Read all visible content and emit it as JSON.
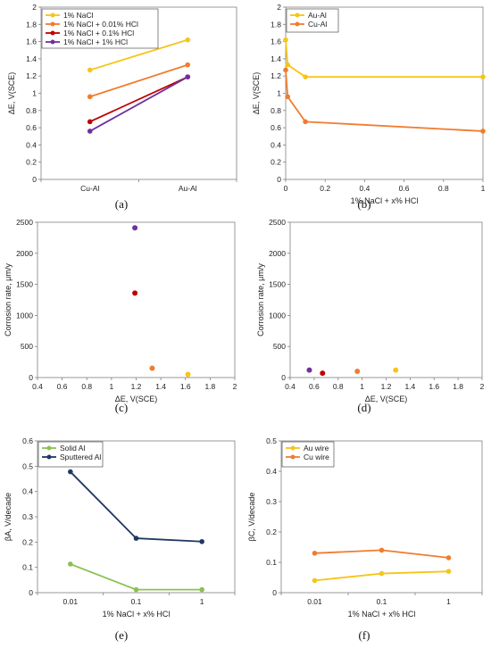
{
  "chart_data": [
    {
      "caption": "(a)",
      "type": "line",
      "categories": [
        "Cu-Al",
        "Au-Al"
      ],
      "series": [
        {
          "name": "1% NaCl",
          "values": [
            1.27,
            1.62
          ],
          "color": "#f5c518"
        },
        {
          "name": "1% NaCl + 0.01% HCl",
          "values": [
            0.96,
            1.33
          ],
          "color": "#f07c2e"
        },
        {
          "name": "1% NaCl + 0.1% HCl",
          "values": [
            0.67,
            1.19
          ],
          "color": "#c00000"
        },
        {
          "name": "1% NaCl + 1% HCl",
          "values": [
            0.56,
            1.19
          ],
          "color": "#7030a0"
        }
      ],
      "ylabel": "ΔE, V(SCE)",
      "xlabel": "",
      "ylim": [
        0,
        2
      ],
      "yticks": [
        "0",
        "0.2",
        "0.4",
        "0.6",
        "0.8",
        "1",
        "1.2",
        "1.4",
        "1.6",
        "1.8",
        "2"
      ],
      "grid": false,
      "legend": "top-left"
    },
    {
      "caption": "(b)",
      "type": "line",
      "x": [
        0,
        0.01,
        0.1,
        1
      ],
      "series": [
        {
          "name": "Au-Al",
          "values": [
            1.62,
            1.33,
            1.19,
            1.19
          ],
          "color": "#f5c518"
        },
        {
          "name": "Cu-Al",
          "values": [
            1.27,
            0.96,
            0.67,
            0.56
          ],
          "color": "#f07c2e"
        }
      ],
      "xlabel": "1% NaCl  + x% HCl",
      "ylabel": "ΔE, V(SCE)",
      "xlim": [
        0,
        1
      ],
      "xticks": [
        "0",
        "0.2",
        "0.4",
        "0.6",
        "0.8",
        "1"
      ],
      "ylim": [
        0,
        2
      ],
      "yticks": [
        "0",
        "0.2",
        "0.4",
        "0.6",
        "0.8",
        "1",
        "1.2",
        "1.4",
        "1.6",
        "1.8",
        "2"
      ],
      "grid": false,
      "legend": "top-left"
    },
    {
      "caption": "(c)",
      "type": "scatter",
      "points": [
        {
          "x": 1.62,
          "y": 50,
          "color": "#f5c518"
        },
        {
          "x": 1.33,
          "y": 150,
          "color": "#f07c2e"
        },
        {
          "x": 1.19,
          "y": 1360,
          "color": "#c00000"
        },
        {
          "x": 1.19,
          "y": 2410,
          "color": "#7030a0"
        }
      ],
      "xlabel": "ΔE, V(SCE)",
      "ylabel": "Corrosion rate, μm/y",
      "xlim": [
        0.4,
        2
      ],
      "xticks": [
        "0.4",
        "0.6",
        "0.8",
        "1",
        "1.2",
        "1.4",
        "1.6",
        "1.8",
        "2"
      ],
      "ylim": [
        0,
        2500
      ],
      "yticks": [
        "0",
        "500",
        "1000",
        "1500",
        "2000",
        "2500"
      ],
      "grid": false
    },
    {
      "caption": "(d)",
      "type": "scatter",
      "points": [
        {
          "x": 1.28,
          "y": 120,
          "color": "#f5c518"
        },
        {
          "x": 0.96,
          "y": 100,
          "color": "#f07c2e"
        },
        {
          "x": 0.67,
          "y": 70,
          "color": "#c00000"
        },
        {
          "x": 0.56,
          "y": 120,
          "color": "#7030a0"
        }
      ],
      "xlabel": "ΔE, V(SCE)",
      "ylabel": "Corrosion rate, μm/y",
      "xlim": [
        0.4,
        2
      ],
      "xticks": [
        "0.4",
        "0.6",
        "0.8",
        "1",
        "1.2",
        "1.4",
        "1.6",
        "1.8",
        "2"
      ],
      "ylim": [
        0,
        2500
      ],
      "yticks": [
        "0",
        "500",
        "1000",
        "1500",
        "2000",
        "2500"
      ],
      "grid": false
    },
    {
      "caption": "(e)",
      "type": "line",
      "categories": [
        "0.01",
        "0.1",
        "1"
      ],
      "series": [
        {
          "name": "Solid Al",
          "values": [
            0.113,
            0.012,
            0.012
          ],
          "color": "#8cc152"
        },
        {
          "name": "Sputtered Al",
          "values": [
            0.478,
            0.215,
            0.202
          ],
          "color": "#1f3864"
        }
      ],
      "xlabel": "1% NaCl + x% HCl",
      "ylabel": "βA, V/decade",
      "ylim": [
        0,
        0.6
      ],
      "yticks": [
        "0",
        "0.1",
        "0.2",
        "0.3",
        "0.4",
        "0.5",
        "0.6"
      ],
      "grid": false,
      "legend": "top-left"
    },
    {
      "caption": "(f)",
      "type": "line",
      "categories": [
        "0.01",
        "0.1",
        "1"
      ],
      "series": [
        {
          "name": "Au wire",
          "values": [
            0.04,
            0.063,
            0.07
          ],
          "color": "#f5c518"
        },
        {
          "name": "Cu wire",
          "values": [
            0.13,
            0.14,
            0.115
          ],
          "color": "#f07c2e"
        }
      ],
      "xlabel": "1% NaCl + x% HCl",
      "ylabel": "βC, V/decade",
      "ylim": [
        0,
        0.5
      ],
      "yticks": [
        "0",
        "0.1",
        "0.2",
        "0.3",
        "0.4",
        "0.5"
      ],
      "grid": false,
      "legend": "top-left"
    }
  ]
}
